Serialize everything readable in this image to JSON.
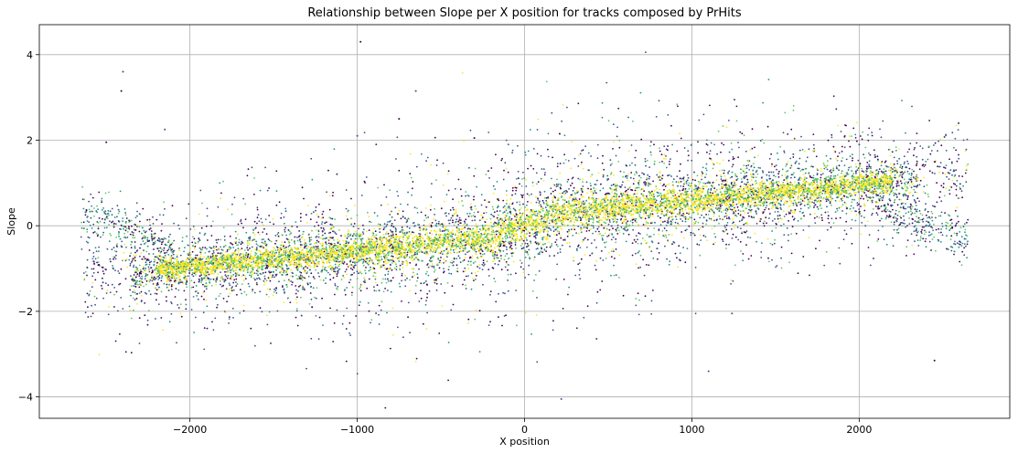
{
  "chart_data": {
    "type": "scatter",
    "title": "Relationship between Slope per X position for tracks composed by PrHits",
    "xlabel": "X position",
    "ylabel": "Slope",
    "xlim": [
      -2900,
      2900
    ],
    "ylim": [
      -4.5,
      4.7
    ],
    "xticks": [
      -2000,
      -1000,
      0,
      1000,
      2000
    ],
    "yticks": [
      -4,
      -2,
      0,
      2,
      4
    ],
    "xtick_labels": [
      "−2000",
      "−1000",
      "0",
      "1000",
      "2000"
    ],
    "ytick_labels": [
      "−4",
      "−2",
      "0",
      "2",
      "4"
    ],
    "grid": true,
    "legend": "none",
    "colormap": [
      "#440154",
      "#3b528b",
      "#21918c",
      "#5ec962",
      "#fde725"
    ],
    "outliers": [
      {
        "x": -980,
        "y": 4.3
      },
      {
        "x": -2400,
        "y": 3.6
      },
      {
        "x": -2410,
        "y": 3.15
      },
      {
        "x": -650,
        "y": 3.15
      },
      {
        "x": -750,
        "y": 2.5
      },
      {
        "x": -2150,
        "y": 2.25
      },
      {
        "x": 210,
        "y": 2.15
      },
      {
        "x": 1100,
        "y": -3.4
      },
      {
        "x": 2450,
        "y": -3.15
      },
      {
        "x": 220,
        "y": -4.05
      },
      {
        "x": -1270,
        "y": -1.9
      },
      {
        "x": -1000,
        "y": 2.1
      },
      {
        "x": -300,
        "y": 2.05
      },
      {
        "x": 2000,
        "y": 1.9
      },
      {
        "x": -2500,
        "y": 1.95
      },
      {
        "x": 1240,
        "y": -2.05
      }
    ]
  }
}
